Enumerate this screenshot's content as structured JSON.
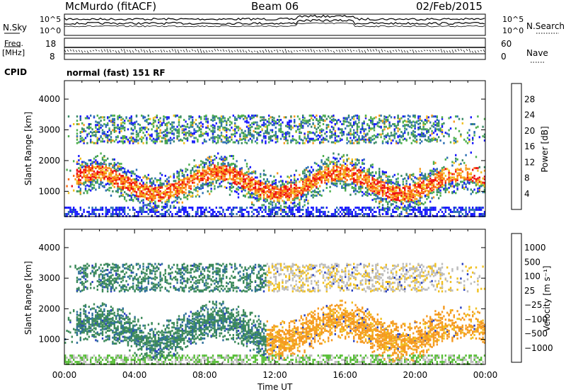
{
  "header": {
    "title": "McMurdo (fitACF)",
    "beam": "Beam 06",
    "date": "02/Feb/2015"
  },
  "strips": {
    "nsky_label": "N.Sky",
    "nsearch_label": "N.Search",
    "noise_ticks_left": [
      "10^5",
      "10^0"
    ],
    "noise_ticks_right": [
      "10^5",
      "10^0"
    ],
    "freq_label": "Freq.",
    "freq_unit": "[MHz]",
    "freq_ticks": [
      "18",
      "8"
    ],
    "nave_label": "Nave",
    "nave_ticks": [
      "60",
      "0"
    ],
    "cpid_label": "CPID",
    "cpid_value": "normal (fast) 151 RF"
  },
  "colors": {
    "power_scale": [
      "#1a1aff",
      "#2d6fb5",
      "#3a8a66",
      "#4fb04f",
      "#f0c020",
      "#f59a20",
      "#ff6a10",
      "#ee1111"
    ],
    "velocity_scale": [
      "#2a40c0",
      "#2e6f9a",
      "#3d8a5a",
      "#5abf3a",
      "#bdbdbd",
      "#f0c020",
      "#f59a20",
      "#ff6a10",
      "#ee1111"
    ],
    "ground_scatter": "#bdbdbd"
  },
  "chart_data": [
    {
      "type": "heatmap",
      "name": "power",
      "xlabel": "Time UT",
      "ylabel": "Slant Range [km]",
      "xlim": [
        0,
        24
      ],
      "ylim": [
        180,
        4600
      ],
      "x_ticks": [
        "00:00",
        "04:00",
        "08:00",
        "12:00",
        "16:00",
        "20:00",
        "00:00"
      ],
      "y_ticks": [
        1000,
        2000,
        3000,
        4000
      ],
      "colorbar": {
        "label": "Power [dB]",
        "ticks": [
          "4",
          "8",
          "12",
          "16",
          "20",
          "24",
          "28"
        ],
        "range": [
          0,
          30
        ]
      }
    },
    {
      "type": "heatmap",
      "name": "velocity",
      "xlabel": "Time UT",
      "ylabel": "Slant Range [km]",
      "xlim": [
        0,
        24
      ],
      "ylim": [
        180,
        4600
      ],
      "x_ticks": [
        "00:00",
        "04:00",
        "08:00",
        "12:00",
        "16:00",
        "20:00",
        "00:00"
      ],
      "y_ticks": [
        1000,
        2000,
        3000,
        4000
      ],
      "colorbar": {
        "label": "Velocity [m s⁻¹]",
        "ticks": [
          "1000",
          "500",
          "100",
          "25",
          "−25",
          "−100",
          "−500",
          "−1000"
        ]
      }
    }
  ]
}
